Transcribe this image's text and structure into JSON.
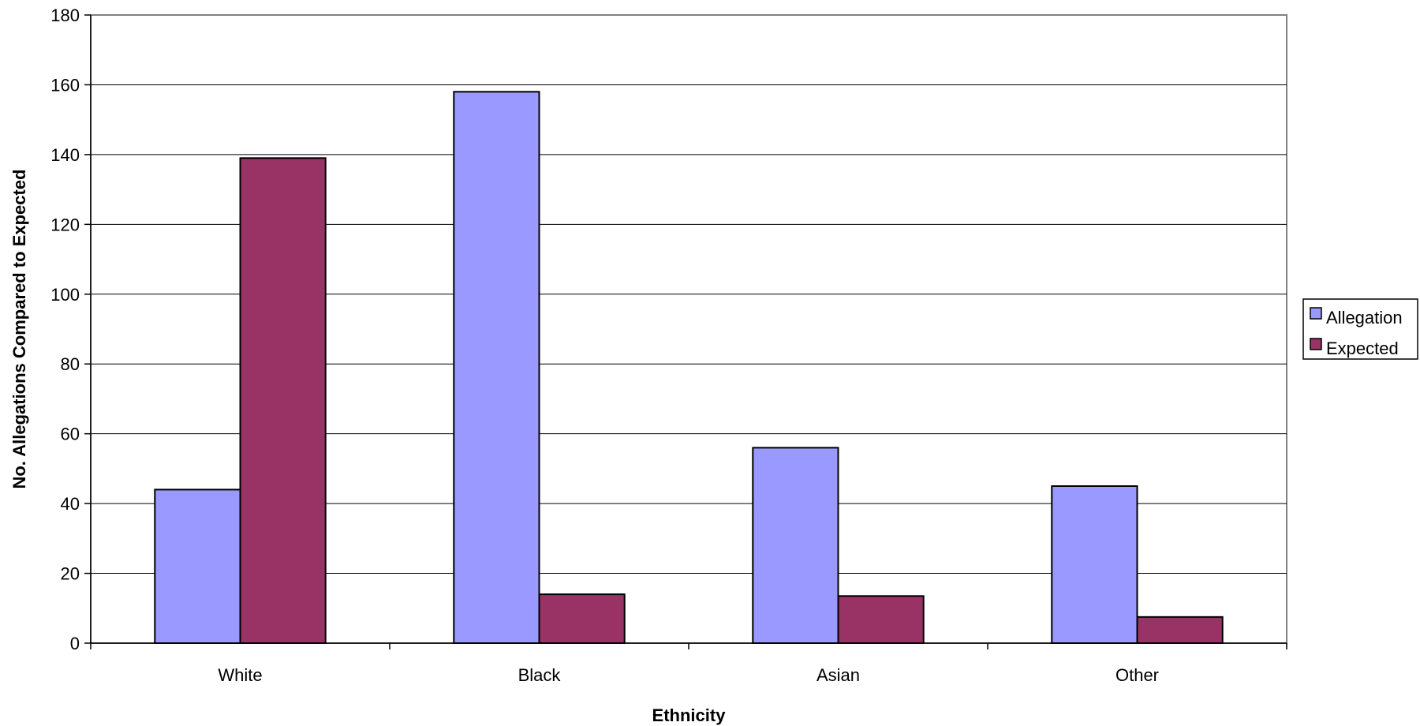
{
  "chart_data": {
    "type": "bar",
    "categories": [
      "White",
      "Black",
      "Asian",
      "Other"
    ],
    "series": [
      {
        "name": "Allegation",
        "values": [
          44,
          158,
          56,
          45
        ],
        "color": "#9999ff"
      },
      {
        "name": "Expected",
        "values": [
          139,
          14,
          13.5,
          7.5
        ],
        "color": "#993366"
      }
    ],
    "title": "",
    "xlabel": "Ethnicity",
    "ylabel": "No. Allegations Compared to Expected",
    "ylim": [
      0,
      180
    ],
    "yticks": [
      0,
      20,
      40,
      60,
      80,
      100,
      120,
      140,
      160,
      180
    ],
    "grid": true,
    "legend": "right"
  }
}
